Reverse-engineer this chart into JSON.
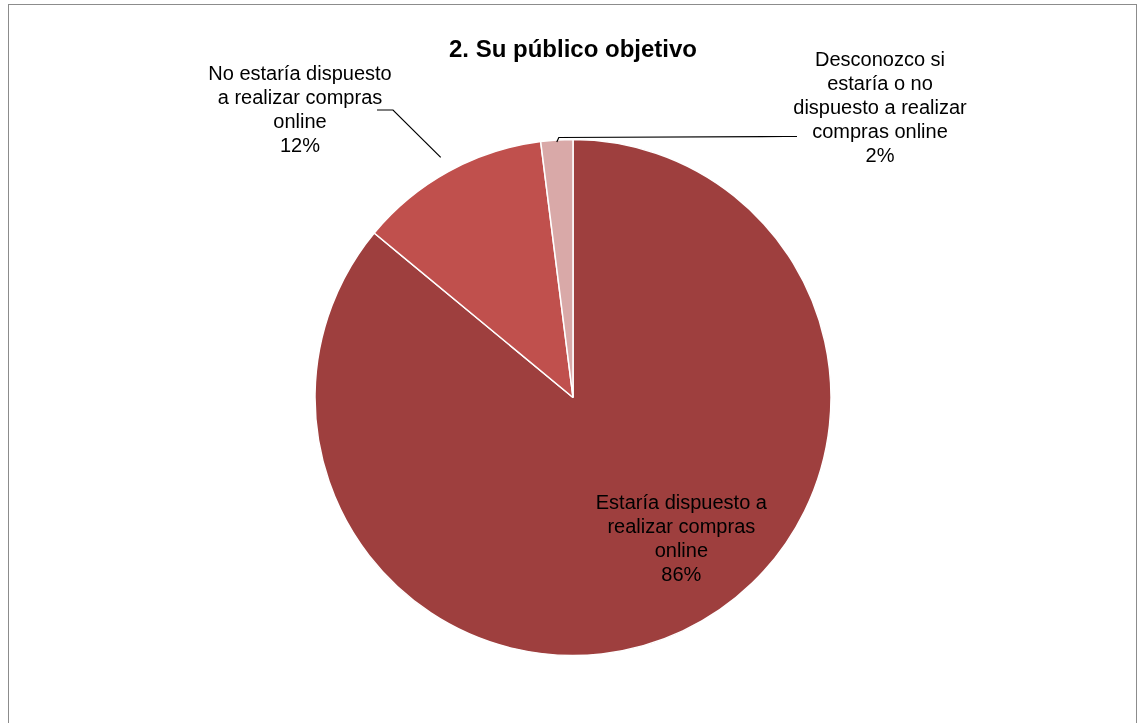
{
  "chart_data": {
    "type": "pie",
    "title": "2. Su público objetivo",
    "categories": [
      "Estaría dispuesto a realizar compras online",
      "No estaría dispuesto a realizar compras online",
      "Desconozco si estaría o no dispuesto a realizar compras online"
    ],
    "values": [
      86,
      12,
      2
    ],
    "value_labels": [
      "86%",
      "12%",
      "2%"
    ],
    "colors": [
      "#9e3f3e",
      "#c0504d",
      "#d9a9a8"
    ],
    "legend": false
  }
}
